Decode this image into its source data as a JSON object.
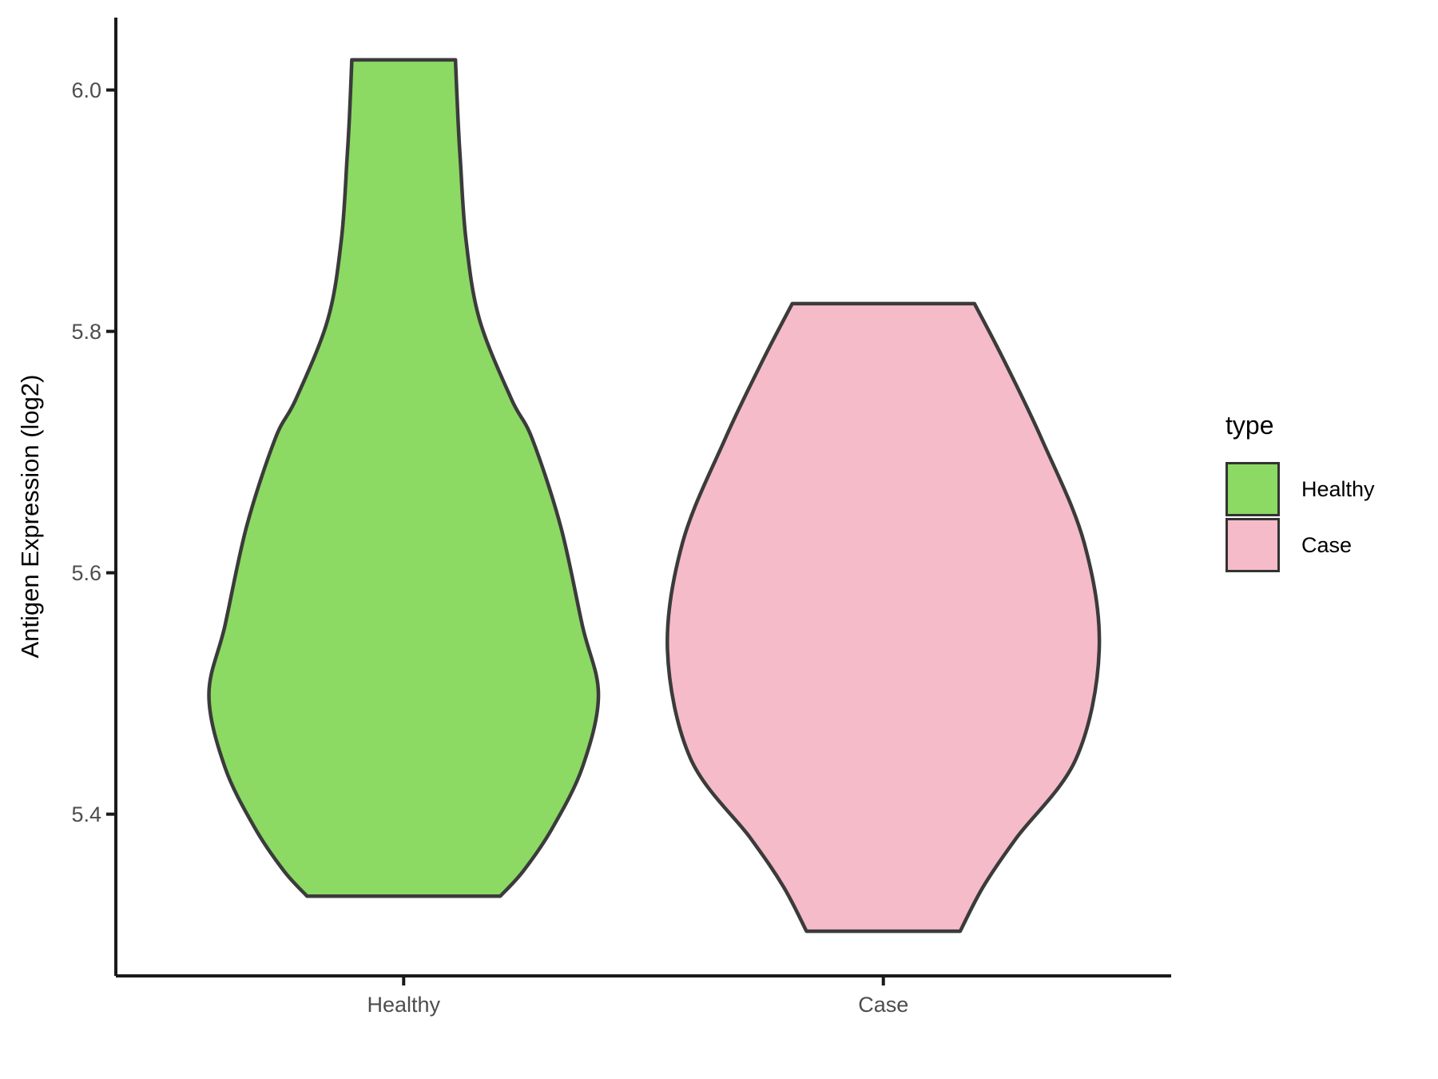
{
  "chart_data": {
    "type": "violin",
    "title": "",
    "xlabel": "",
    "ylabel": "Antigen Expression (log2)",
    "categories": [
      "Healthy",
      "Case"
    ],
    "y_axis": {
      "ticks": [
        6.0,
        5.8,
        5.6,
        5.4
      ],
      "tick_labels": [
        "6.0",
        "5.8",
        "5.6",
        "5.4"
      ],
      "range": [
        5.266,
        6.06
      ]
    },
    "x_axis": {
      "range_units": [
        0.4,
        2.6
      ],
      "category_positions": [
        1,
        2
      ],
      "tick_labels": [
        "Healthy",
        "Case"
      ]
    },
    "grid": false,
    "legend": {
      "title": "type",
      "position": "right",
      "entries": [
        {
          "label": "Healthy",
          "color": "#8CD964"
        },
        {
          "label": "Case",
          "color": "#F5BBC9"
        }
      ]
    },
    "series": [
      {
        "name": "Healthy",
        "fill": "#8CD964",
        "center": 1,
        "max_halfwidth_units": 0.406,
        "summary": {
          "min": 5.33,
          "max": 6.03,
          "peak_density_at": 5.5
        },
        "outline": [
          {
            "v": 6.025,
            "w": 0.266
          },
          {
            "v": 5.976,
            "w": 0.279
          },
          {
            "v": 5.942,
            "w": 0.291
          },
          {
            "v": 5.876,
            "w": 0.32
          },
          {
            "v": 5.81,
            "w": 0.389
          },
          {
            "v": 5.744,
            "w": 0.553
          },
          {
            "v": 5.711,
            "w": 0.66
          },
          {
            "v": 5.638,
            "w": 0.807
          },
          {
            "v": 5.556,
            "w": 0.918
          },
          {
            "v": 5.499,
            "w": 1.0
          },
          {
            "v": 5.439,
            "w": 0.918
          },
          {
            "v": 5.388,
            "w": 0.762
          },
          {
            "v": 5.353,
            "w": 0.615
          },
          {
            "v": 5.332,
            "w": 0.496
          }
        ]
      },
      {
        "name": "Case",
        "fill": "#F5BBC9",
        "center": 2,
        "max_halfwidth_units": 0.45,
        "summary": {
          "min": 5.3,
          "max": 5.82,
          "peak_density_at": 5.54
        },
        "outline": [
          {
            "v": 5.823,
            "w": 0.422
          },
          {
            "v": 5.777,
            "w": 0.556
          },
          {
            "v": 5.711,
            "w": 0.733
          },
          {
            "v": 5.625,
            "w": 0.93
          },
          {
            "v": 5.536,
            "w": 1.0
          },
          {
            "v": 5.446,
            "w": 0.893
          },
          {
            "v": 5.38,
            "w": 0.615
          },
          {
            "v": 5.34,
            "w": 0.463
          },
          {
            "v": 5.303,
            "w": 0.356
          }
        ]
      }
    ],
    "style": {
      "violin_outline_color": "#3B3B3B",
      "axis_line_color": "#1a1a1a",
      "tick_label_color": "#4D4D4D",
      "axis_title_color": "#000000",
      "background": "#FFFFFF"
    }
  }
}
